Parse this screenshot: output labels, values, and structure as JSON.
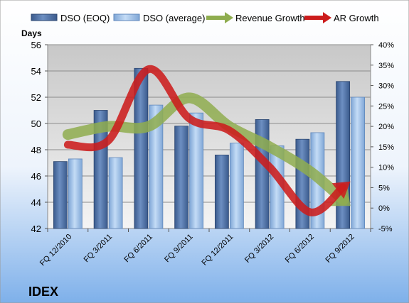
{
  "company": "IDEX",
  "chart_data": {
    "type": "bar",
    "title": "",
    "categories": [
      "FQ 12/2010",
      "FQ 3/2011",
      "FQ 6/2011",
      "FQ 9/2011",
      "FQ 12/2011",
      "FQ 3/2012",
      "FQ 6/2012",
      "FQ 9/2012"
    ],
    "y_left": {
      "label": "Days",
      "range": [
        42,
        56
      ],
      "ticks": [
        "42",
        "44",
        "46",
        "48",
        "50",
        "52",
        "54",
        "56"
      ]
    },
    "y_right": {
      "label": "",
      "range": [
        -5,
        40
      ],
      "ticks": [
        "-5%",
        "0%",
        "5%",
        "10%",
        "15%",
        "20%",
        "25%",
        "30%",
        "35%",
        "40%"
      ]
    },
    "series": [
      {
        "name": "DSO (EOQ)",
        "kind": "bar",
        "axis": "left",
        "values": [
          47.1,
          51.0,
          54.2,
          49.8,
          47.6,
          50.3,
          48.8,
          53.2
        ]
      },
      {
        "name": "DSO (average)",
        "kind": "bar",
        "axis": "left",
        "values": [
          47.3,
          47.4,
          51.4,
          50.8,
          48.5,
          48.3,
          49.3,
          52.0
        ]
      },
      {
        "name": "Revenue Growth",
        "kind": "line-arrow",
        "axis": "right",
        "values": [
          18,
          20,
          20,
          27,
          20,
          15,
          9,
          0.5
        ]
      },
      {
        "name": "AR Growth",
        "kind": "line-arrow",
        "axis": "right",
        "values": [
          15.5,
          16.5,
          34,
          22,
          19,
          10,
          -1,
          6.5
        ]
      }
    ],
    "legend": "top",
    "grid": true,
    "colors": {
      "bar_eoq": "#4d6fa0",
      "bar_avg": "#9fc1e8",
      "revenue": "#8fad4f",
      "ar": "#cc1c1c",
      "plot_bg": "#d2d2d2",
      "page_bg_top": "#ffffff",
      "page_bg_bottom": "#7eb0ea"
    }
  }
}
